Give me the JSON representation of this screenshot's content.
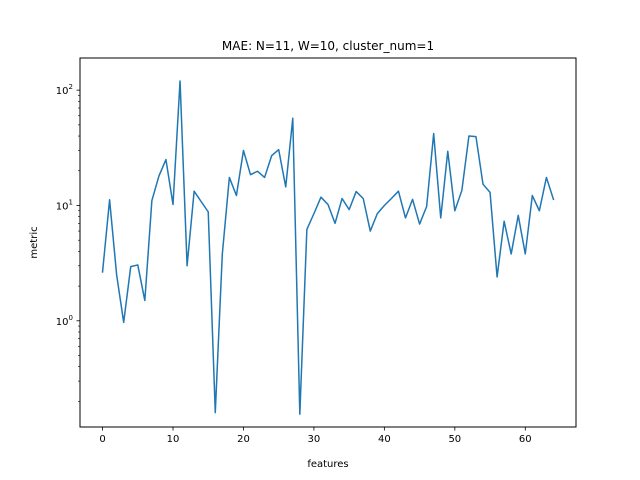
{
  "chart_data": {
    "type": "line",
    "title": "MAE: N=11, W=10, cluster_num=1",
    "xlabel": "features",
    "ylabel": "metric",
    "xlim": [
      -3.2,
      67.2
    ],
    "ylim": [
      0.12,
      190
    ],
    "yscale": "log",
    "grid": false,
    "x_ticks": [
      0,
      10,
      20,
      30,
      40,
      50,
      60
    ],
    "y_ticks": [
      {
        "value": 1,
        "base": "10",
        "exp": "0"
      },
      {
        "value": 10,
        "base": "10",
        "exp": "1"
      },
      {
        "value": 100,
        "base": "10",
        "exp": "2"
      }
    ],
    "series": [
      {
        "color": "#1f77b4",
        "x": [
          0,
          1,
          2,
          3,
          4,
          5,
          6,
          7,
          8,
          9,
          10,
          11,
          12,
          13,
          14,
          15,
          16,
          17,
          18,
          19,
          20,
          21,
          22,
          23,
          24,
          25,
          26,
          27,
          28,
          29,
          30,
          31,
          32,
          33,
          34,
          35,
          36,
          37,
          38,
          39,
          40,
          41,
          42,
          43,
          44,
          45,
          46,
          47,
          48,
          49,
          50,
          51,
          52,
          53,
          54,
          55,
          56,
          57,
          58,
          59,
          60,
          61,
          62,
          63,
          64
        ],
        "values": [
          2.65,
          11.2,
          2.5,
          0.97,
          2.95,
          3.05,
          1.5,
          11.0,
          18.0,
          25.0,
          10.2,
          120.0,
          3.0,
          13.3,
          10.8,
          8.8,
          0.16,
          3.8,
          17.5,
          12.2,
          30.0,
          18.5,
          19.8,
          17.5,
          27.0,
          30.5,
          14.5,
          57.0,
          0.155,
          6.2,
          8.5,
          11.8,
          10.2,
          7.0,
          11.5,
          9.2,
          13.2,
          11.5,
          6.0,
          8.5,
          10.0,
          11.5,
          13.3,
          7.8,
          11.3,
          6.9,
          9.8,
          42.0,
          7.8,
          29.5,
          9.0,
          13.5,
          40.0,
          39.5,
          15.3,
          13.0,
          2.4,
          7.3,
          3.8,
          8.2,
          3.8,
          12.2,
          9.0,
          17.5,
          11.3
        ]
      }
    ]
  }
}
